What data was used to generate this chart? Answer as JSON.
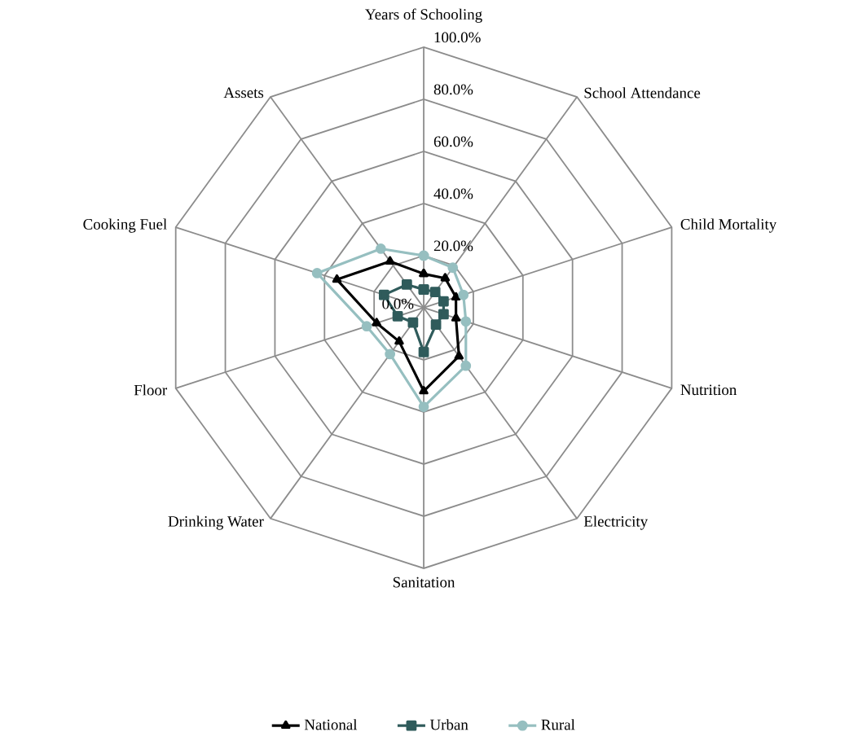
{
  "chart_data": {
    "type": "radar",
    "categories": [
      "Years of Schooling",
      "School Attendance",
      "Child Mortality",
      "Nutrition",
      "Electricity",
      "Sanitation",
      "Drinking Water",
      "Floor",
      "Cooking Fuel",
      "Assets"
    ],
    "series": [
      {
        "name": "National",
        "color": "#000000",
        "marker": "triangle",
        "values": [
          13,
          14,
          13,
          13,
          23,
          32,
          16,
          19,
          35,
          22
        ]
      },
      {
        "name": "Urban",
        "color": "#2f5b5b",
        "marker": "square",
        "values": [
          7,
          7.5,
          8,
          8,
          8,
          17,
          7,
          10.5,
          16,
          11
        ]
      },
      {
        "name": "Rural",
        "color": "#96bfc0",
        "marker": "circle",
        "values": [
          20,
          19,
          16,
          17,
          27.5,
          38,
          22,
          23,
          43,
          28
        ]
      }
    ],
    "ylim": [
      0,
      100
    ],
    "yticks": [
      {
        "value": 0,
        "label": "0.0%"
      },
      {
        "value": 20,
        "label": "20.0%"
      },
      {
        "value": 40,
        "label": "40.0%"
      },
      {
        "value": 60,
        "label": "60.0%"
      },
      {
        "value": 80,
        "label": "80.0%"
      },
      {
        "value": 100,
        "label": "100.0%"
      }
    ],
    "grid": true,
    "legend": "bottom",
    "line_style": "solid"
  }
}
